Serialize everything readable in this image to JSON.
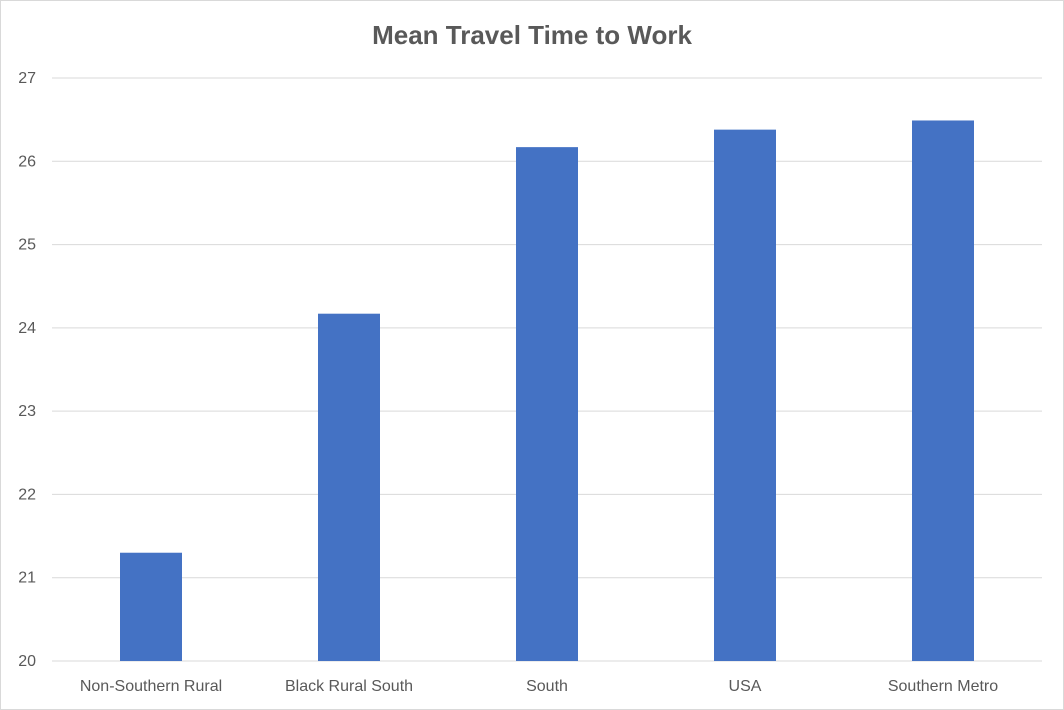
{
  "chart_data": {
    "type": "bar",
    "title": "Mean Travel Time to Work",
    "xlabel": "",
    "ylabel": "",
    "categories": [
      "Non-Southern Rural",
      "Black Rural South",
      "South",
      "USA",
      "Southern Metro"
    ],
    "values": [
      21.3,
      24.17,
      26.17,
      26.38,
      26.49
    ],
    "ylim": [
      20,
      27
    ],
    "yticks": [
      "20",
      "21",
      "22",
      "23",
      "24",
      "25",
      "26",
      "27"
    ],
    "grid": true,
    "legend": "none",
    "colors": {
      "bar": "#4472C4",
      "grid": "#d9d9d9",
      "text": "#595959"
    }
  }
}
